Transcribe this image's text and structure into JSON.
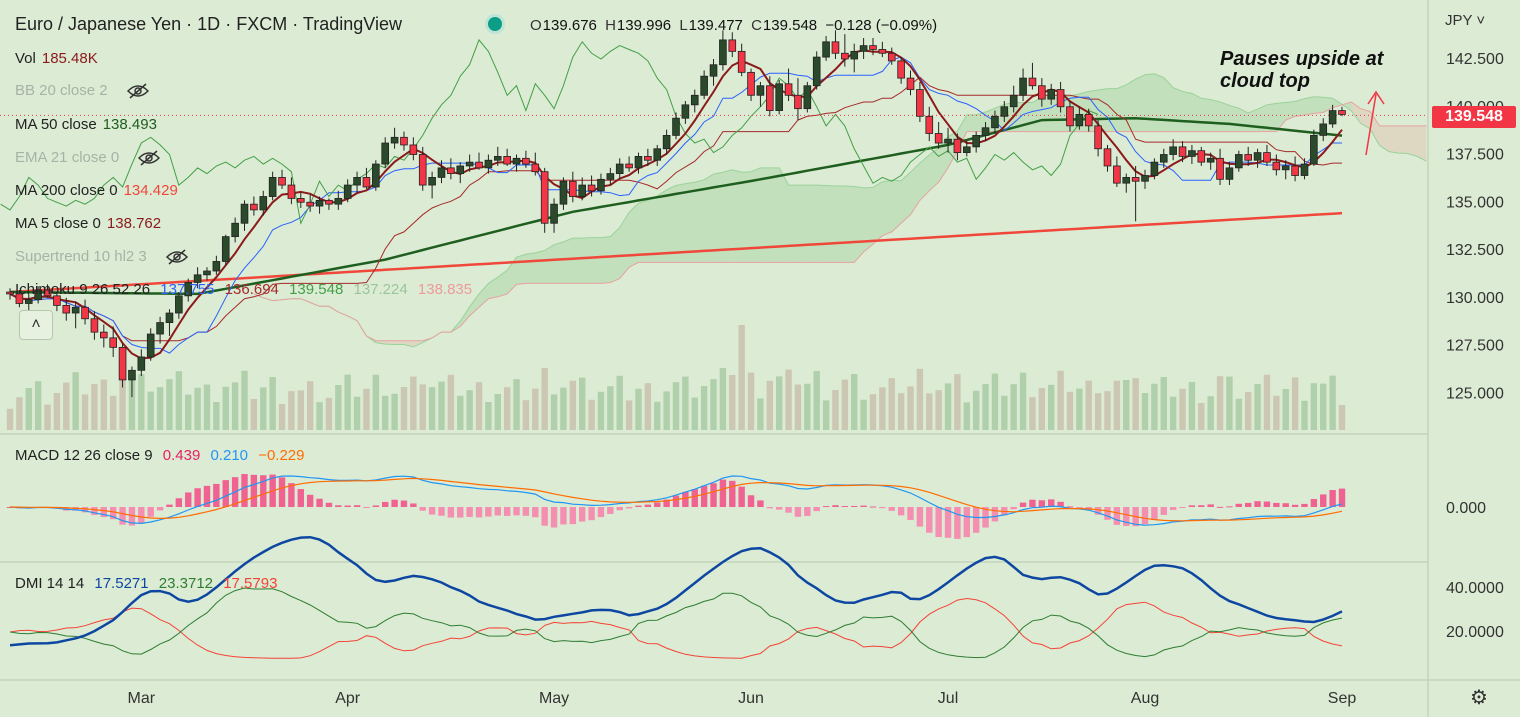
{
  "header": {
    "symbol": "Euro / Japanese Yen",
    "interval": "1D",
    "source": "FXCM",
    "platform": "TradingView",
    "sep": "·"
  },
  "ohlc": {
    "o_label": "O",
    "o": "139.676",
    "h_label": "H",
    "h": "139.996",
    "l_label": "L",
    "l": "139.477",
    "c_label": "C",
    "c": "139.548",
    "change": "−0.128 (−0.09%)"
  },
  "indicators": {
    "vol": {
      "name": "Vol",
      "value": "185.48K"
    },
    "bb": {
      "name": "BB 20 close 2"
    },
    "ma50": {
      "name": "MA 50 close",
      "value": "138.493"
    },
    "ema21": {
      "name": "EMA 21 close 0"
    },
    "ma200": {
      "name": "MA 200 close 0",
      "value": "134.429"
    },
    "ma5": {
      "name": "MA 5 close 0",
      "value": "138.762"
    },
    "supertrend": {
      "name": "Supertrend 10 hl2 3"
    },
    "ichimoku": {
      "name": "Ichimoku 9 26 52 26",
      "v1": "137.755",
      "v2": "136.694",
      "v3": "139.548",
      "v4": "137.224",
      "v5": "138.835"
    },
    "macd": {
      "name": "MACD 12 26 close 9",
      "hist": "0.439",
      "macd": "0.210",
      "signal": "−0.229"
    },
    "dmi": {
      "name": "DMI 14 14",
      "v1": "17.5271",
      "v2": "23.3712",
      "v3": "17.5793"
    }
  },
  "axis": {
    "currency": "JPY",
    "currency_icon": "chevron-down-icon",
    "price_ticks": [
      "142.500",
      "140.000",
      "137.500",
      "135.000",
      "132.500",
      "130.000",
      "127.500",
      "125.000"
    ],
    "macd_ticks": [
      "0.000"
    ],
    "dmi_ticks": [
      "40.0000",
      "20.0000"
    ],
    "months": [
      "Mar",
      "Apr",
      "May",
      "Jun",
      "Jul",
      "Aug",
      "Sep"
    ],
    "last_price": "139.548"
  },
  "annotation": {
    "line1": "Pauses upside at",
    "line2": "cloud top"
  },
  "settings_icon": "gear-icon",
  "colors": {
    "background": "#dcebd4",
    "up": "#2b4a2b",
    "down": "#f23645",
    "ma200": "#f0473a",
    "ma50": "#1e5e1e",
    "ma5": "#8b1a1a",
    "tenkan": "#2962ff",
    "kijun": "#a52a2a",
    "chikou": "#43a047",
    "macd_line": "#2196f3",
    "signal_line": "#ff6d00",
    "macd_hist": "#f06292",
    "dmi_adx": "#0d47a1",
    "dmi_plus": "#2e7d32",
    "dmi_minus": "#f44336"
  },
  "chart_data": [
    {
      "type": "candlestick",
      "title": "Euro / Japanese Yen · 1D · FXCM",
      "ylim": [
        123.75,
        144.0
      ],
      "x_ticks": [
        "Mar",
        "Apr",
        "May",
        "Jun",
        "Jul",
        "Aug",
        "Sep"
      ],
      "candles": [
        [
          130.3,
          130.5,
          129.9,
          130.2
        ],
        [
          130.2,
          130.4,
          129.5,
          129.7
        ],
        [
          129.7,
          130.2,
          129.2,
          129.9
        ],
        [
          129.9,
          130.6,
          129.7,
          130.4
        ],
        [
          130.4,
          130.7,
          130.0,
          130.1
        ],
        [
          130.1,
          130.3,
          129.3,
          129.6
        ],
        [
          129.6,
          130.0,
          128.8,
          129.2
        ],
        [
          129.2,
          129.8,
          128.4,
          129.5
        ],
        [
          129.5,
          129.9,
          128.6,
          128.9
        ],
        [
          128.9,
          129.3,
          127.8,
          128.2
        ],
        [
          128.2,
          128.6,
          127.4,
          127.9
        ],
        [
          127.9,
          128.5,
          126.9,
          127.4
        ],
        [
          127.4,
          127.6,
          125.3,
          125.7
        ],
        [
          125.7,
          126.4,
          124.8,
          126.2
        ],
        [
          126.2,
          127.3,
          125.9,
          126.9
        ],
        [
          126.9,
          128.4,
          126.7,
          128.1
        ],
        [
          128.1,
          129.0,
          127.6,
          128.7
        ],
        [
          128.7,
          129.4,
          128.0,
          129.2
        ],
        [
          129.2,
          130.3,
          128.9,
          130.1
        ],
        [
          130.1,
          131.0,
          129.8,
          130.8
        ],
        [
          130.8,
          131.6,
          130.5,
          131.2
        ],
        [
          131.2,
          131.6,
          130.9,
          131.4
        ],
        [
          131.4,
          132.2,
          131.2,
          131.9
        ],
        [
          131.9,
          133.3,
          131.7,
          133.2
        ],
        [
          133.2,
          134.2,
          132.9,
          133.9
        ],
        [
          133.9,
          135.1,
          133.5,
          134.9
        ],
        [
          134.9,
          135.3,
          134.3,
          134.6
        ],
        [
          134.6,
          135.6,
          134.3,
          135.3
        ],
        [
          135.3,
          136.6,
          135.1,
          136.3
        ],
        [
          136.3,
          136.7,
          135.7,
          135.9
        ],
        [
          135.9,
          136.3,
          134.9,
          135.2
        ],
        [
          135.2,
          135.5,
          134.7,
          135.0
        ],
        [
          135.0,
          135.4,
          134.5,
          134.8
        ],
        [
          134.8,
          135.3,
          134.4,
          135.1
        ],
        [
          135.1,
          135.2,
          134.6,
          134.9
        ],
        [
          134.9,
          135.6,
          134.6,
          135.2
        ],
        [
          135.2,
          136.2,
          135.0,
          135.9
        ],
        [
          135.9,
          136.6,
          135.5,
          136.3
        ],
        [
          136.3,
          136.8,
          135.7,
          135.8
        ],
        [
          135.8,
          137.2,
          135.6,
          137.0
        ],
        [
          137.0,
          138.4,
          136.8,
          138.1
        ],
        [
          138.1,
          138.9,
          137.8,
          138.4
        ],
        [
          138.4,
          138.7,
          137.7,
          138.0
        ],
        [
          138.0,
          138.4,
          137.2,
          137.5
        ],
        [
          137.5,
          137.9,
          135.6,
          135.9
        ],
        [
          135.9,
          136.6,
          135.2,
          136.3
        ],
        [
          136.3,
          137.2,
          136.0,
          136.8
        ],
        [
          136.8,
          137.3,
          136.2,
          136.5
        ],
        [
          136.5,
          137.1,
          136.0,
          136.9
        ],
        [
          136.9,
          137.5,
          136.6,
          137.1
        ],
        [
          137.1,
          137.6,
          136.7,
          136.8
        ],
        [
          136.8,
          137.5,
          136.5,
          137.2
        ],
        [
          137.2,
          137.9,
          136.9,
          137.4
        ],
        [
          137.4,
          137.8,
          136.9,
          137.0
        ],
        [
          137.0,
          137.5,
          136.6,
          137.3
        ],
        [
          137.3,
          137.7,
          136.8,
          137.0
        ],
        [
          137.0,
          137.6,
          136.4,
          136.6
        ],
        [
          136.6,
          136.8,
          133.4,
          133.9
        ],
        [
          133.9,
          135.2,
          133.4,
          134.9
        ],
        [
          134.9,
          136.3,
          134.6,
          136.1
        ],
        [
          136.1,
          136.6,
          135.0,
          135.3
        ],
        [
          135.3,
          136.3,
          135.1,
          135.9
        ],
        [
          135.9,
          136.4,
          135.3,
          135.6
        ],
        [
          135.6,
          136.5,
          135.4,
          136.2
        ],
        [
          136.2,
          136.8,
          135.9,
          136.5
        ],
        [
          136.5,
          137.3,
          136.2,
          137.0
        ],
        [
          137.0,
          137.4,
          136.6,
          136.8
        ],
        [
          136.8,
          137.6,
          136.5,
          137.4
        ],
        [
          137.4,
          137.8,
          136.9,
          137.2
        ],
        [
          137.2,
          138.0,
          136.9,
          137.8
        ],
        [
          137.8,
          138.8,
          137.5,
          138.5
        ],
        [
          138.5,
          139.7,
          138.3,
          139.4
        ],
        [
          139.4,
          140.3,
          139.1,
          140.1
        ],
        [
          140.1,
          140.9,
          139.7,
          140.6
        ],
        [
          140.6,
          141.9,
          140.4,
          141.6
        ],
        [
          141.6,
          142.5,
          141.1,
          142.2
        ],
        [
          142.2,
          144.0,
          141.9,
          143.5
        ],
        [
          143.5,
          143.9,
          142.6,
          142.9
        ],
        [
          142.9,
          143.3,
          141.6,
          141.8
        ],
        [
          141.8,
          142.0,
          140.3,
          140.6
        ],
        [
          140.6,
          141.3,
          140.0,
          141.1
        ],
        [
          141.1,
          141.6,
          139.5,
          139.8
        ],
        [
          139.8,
          141.4,
          139.6,
          141.2
        ],
        [
          141.2,
          142.0,
          140.3,
          140.6
        ],
        [
          140.6,
          141.5,
          139.3,
          139.9
        ],
        [
          139.9,
          141.3,
          139.7,
          141.1
        ],
        [
          141.1,
          142.9,
          140.9,
          142.6
        ],
        [
          142.6,
          143.7,
          142.4,
          143.4
        ],
        [
          143.4,
          144.0,
          142.5,
          142.8
        ],
        [
          142.8,
          143.8,
          142.1,
          142.5
        ],
        [
          142.5,
          143.3,
          141.8,
          142.9
        ],
        [
          142.9,
          143.6,
          142.5,
          143.2
        ],
        [
          143.2,
          143.6,
          142.7,
          143.0
        ],
        [
          143.0,
          143.4,
          142.6,
          142.8
        ],
        [
          142.8,
          143.1,
          142.2,
          142.4
        ],
        [
          142.4,
          142.6,
          141.2,
          141.5
        ],
        [
          141.5,
          141.9,
          140.6,
          140.9
        ],
        [
          140.9,
          141.3,
          139.2,
          139.5
        ],
        [
          139.5,
          140.0,
          138.2,
          138.6
        ],
        [
          138.6,
          139.2,
          137.8,
          138.1
        ],
        [
          138.1,
          138.9,
          137.6,
          138.3
        ],
        [
          138.3,
          138.6,
          137.2,
          137.6
        ],
        [
          137.6,
          138.2,
          137.4,
          137.9
        ],
        [
          137.9,
          138.7,
          137.6,
          138.5
        ],
        [
          138.5,
          139.2,
          138.2,
          138.9
        ],
        [
          138.9,
          139.8,
          138.6,
          139.5
        ],
        [
          139.5,
          140.3,
          139.2,
          140.0
        ],
        [
          140.0,
          141.1,
          139.7,
          140.6
        ],
        [
          140.6,
          142.0,
          140.3,
          141.5
        ],
        [
          141.5,
          142.3,
          140.9,
          141.1
        ],
        [
          141.1,
          141.5,
          140.0,
          140.4
        ],
        [
          140.4,
          141.2,
          140.1,
          140.9
        ],
        [
          140.9,
          141.3,
          139.7,
          140.0
        ],
        [
          140.0,
          140.3,
          138.7,
          139.0
        ],
        [
          139.0,
          140.0,
          138.8,
          139.6
        ],
        [
          139.6,
          139.9,
          138.7,
          139.0
        ],
        [
          139.0,
          139.3,
          137.4,
          137.8
        ],
        [
          137.8,
          138.0,
          136.6,
          136.9
        ],
        [
          136.9,
          137.4,
          135.8,
          136.0
        ],
        [
          136.0,
          136.5,
          135.5,
          136.3
        ],
        [
          136.3,
          136.9,
          134.0,
          136.1
        ],
        [
          136.1,
          136.7,
          135.7,
          136.4
        ],
        [
          136.4,
          137.3,
          136.2,
          137.1
        ],
        [
          137.1,
          137.8,
          136.8,
          137.5
        ],
        [
          137.5,
          138.3,
          137.2,
          137.9
        ],
        [
          137.9,
          138.2,
          137.1,
          137.4
        ],
        [
          137.4,
          138.0,
          137.0,
          137.7
        ],
        [
          137.7,
          137.9,
          136.9,
          137.1
        ],
        [
          137.1,
          137.6,
          136.7,
          137.3
        ],
        [
          137.3,
          137.8,
          135.9,
          136.2
        ],
        [
          136.2,
          137.1,
          135.9,
          136.8
        ],
        [
          136.8,
          137.7,
          136.6,
          137.5
        ],
        [
          137.5,
          137.9,
          136.9,
          137.2
        ],
        [
          137.2,
          137.8,
          136.8,
          137.6
        ],
        [
          137.6,
          138.0,
          136.9,
          137.1
        ],
        [
          137.1,
          137.5,
          136.4,
          136.7
        ],
        [
          136.7,
          137.2,
          136.2,
          136.9
        ],
        [
          136.9,
          137.4,
          136.1,
          136.4
        ],
        [
          136.4,
          137.3,
          136.2,
          137.0
        ],
        [
          137.0,
          138.8,
          136.9,
          138.5
        ],
        [
          138.5,
          139.4,
          138.2,
          139.1
        ],
        [
          139.1,
          140.1,
          138.9,
          139.8
        ],
        [
          139.8,
          140.0,
          139.5,
          139.6
        ]
      ],
      "series": [
        {
          "name": "MA 200 close 0",
          "x": [
            0,
            142
          ],
          "values": [
            130.3,
            134.43
          ]
        },
        {
          "name": "MA 50 close",
          "x": [
            0,
            20,
            40,
            60,
            80,
            100,
            110,
            120,
            130,
            142
          ],
          "values": [
            130.3,
            130.2,
            132.0,
            134.5,
            136.2,
            138.0,
            139.3,
            139.4,
            139.1,
            138.49
          ]
        }
      ],
      "volume": {
        "name": "Vol",
        "last": "185.48K"
      }
    },
    {
      "type": "line",
      "title": "MACD 12 26 close 9",
      "series": [
        {
          "name": "histogram",
          "last": 0.439
        },
        {
          "name": "MACD",
          "last": 0.21
        },
        {
          "name": "signal",
          "last": -0.229
        }
      ]
    },
    {
      "type": "line",
      "title": "DMI 14 14",
      "ylim": [
        5,
        45
      ],
      "series": [
        {
          "name": "ADX",
          "last": 17.5271
        },
        {
          "name": "+DI",
          "last": 23.3712
        },
        {
          "name": "-DI",
          "last": 17.5793
        }
      ]
    }
  ]
}
